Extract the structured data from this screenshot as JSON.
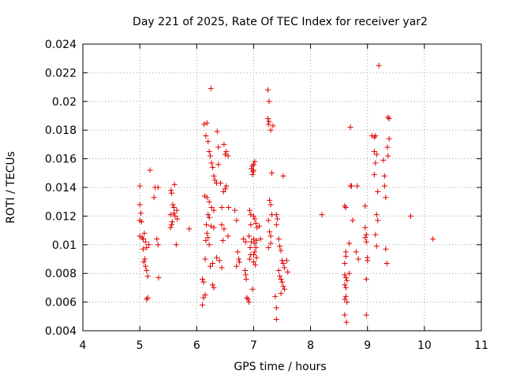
{
  "chart_data": {
    "type": "scatter",
    "title": "Day 221 of 2025, Rate Of TEC Index for receiver yar2",
    "xlabel": "GPS time / hours",
    "ylabel": "ROTI / TECUs",
    "xlim": [
      4,
      11
    ],
    "ylim": [
      0.004,
      0.024
    ],
    "xticks": [
      4,
      5,
      6,
      7,
      8,
      9,
      10,
      11
    ],
    "yticks": [
      0.004,
      0.006,
      0.008,
      0.01,
      0.012,
      0.014,
      0.016,
      0.018,
      0.02,
      0.022,
      0.024
    ],
    "xtick_labels": [
      "4",
      "5",
      "6",
      "7",
      "8",
      "9",
      "10",
      "11"
    ],
    "ytick_labels": [
      "0.004",
      "0.006",
      "0.008",
      "0.01",
      "0.012",
      "0.014",
      "0.016",
      "0.018",
      "0.02",
      "0.022",
      "0.024"
    ],
    "grid": true,
    "marker": "+",
    "marker_color": "#e00000",
    "series": [
      {
        "name": "yar2",
        "points": [
          [
            5.0,
            0.0141
          ],
          [
            5.0,
            0.0128
          ],
          [
            5.02,
            0.0122
          ],
          [
            5.0,
            0.0117
          ],
          [
            5.03,
            0.0116
          ],
          [
            5.0,
            0.0106
          ],
          [
            5.04,
            0.0105
          ],
          [
            5.06,
            0.0104
          ],
          [
            5.08,
            0.0108
          ],
          [
            5.1,
            0.0102
          ],
          [
            5.06,
            0.0097
          ],
          [
            5.09,
            0.009
          ],
          [
            5.07,
            0.0088
          ],
          [
            5.1,
            0.0085
          ],
          [
            5.12,
            0.0082
          ],
          [
            5.14,
            0.0078
          ],
          [
            5.12,
            0.0098
          ],
          [
            5.16,
            0.01
          ],
          [
            5.12,
            0.0062
          ],
          [
            5.14,
            0.0063
          ],
          [
            5.18,
            0.0152
          ],
          [
            5.27,
            0.014
          ],
          [
            5.32,
            0.014
          ],
          [
            5.25,
            0.0133
          ],
          [
            5.3,
            0.0104
          ],
          [
            5.32,
            0.01
          ],
          [
            5.33,
            0.0077
          ],
          [
            5.55,
            0.0138
          ],
          [
            5.56,
            0.0136
          ],
          [
            5.58,
            0.0128
          ],
          [
            5.6,
            0.0126
          ],
          [
            5.6,
            0.0122
          ],
          [
            5.62,
            0.012
          ],
          [
            5.57,
            0.0116
          ],
          [
            5.56,
            0.0114
          ],
          [
            5.54,
            0.0112
          ],
          [
            5.65,
            0.0124
          ],
          [
            5.66,
            0.0118
          ],
          [
            5.64,
            0.01
          ],
          [
            5.61,
            0.0142
          ],
          [
            5.54,
            0.0121
          ],
          [
            5.87,
            0.0111
          ],
          [
            6.13,
            0.0184
          ],
          [
            6.18,
            0.0185
          ],
          [
            6.16,
            0.0176
          ],
          [
            6.2,
            0.0172
          ],
          [
            6.22,
            0.0165
          ],
          [
            6.24,
            0.0162
          ],
          [
            6.26,
            0.0157
          ],
          [
            6.28,
            0.0154
          ],
          [
            6.3,
            0.0148
          ],
          [
            6.32,
            0.0145
          ],
          [
            6.35,
            0.0143
          ],
          [
            6.38,
            0.0168
          ],
          [
            6.36,
            0.0179
          ],
          [
            6.14,
            0.0134
          ],
          [
            6.18,
            0.0133
          ],
          [
            6.22,
            0.013
          ],
          [
            6.26,
            0.0126
          ],
          [
            6.3,
            0.0124
          ],
          [
            6.2,
            0.0121
          ],
          [
            6.22,
            0.0119
          ],
          [
            6.17,
            0.0114
          ],
          [
            6.25,
            0.0113
          ],
          [
            6.3,
            0.0112
          ],
          [
            6.18,
            0.0108
          ],
          [
            6.2,
            0.0105
          ],
          [
            6.16,
            0.0103
          ],
          [
            6.22,
            0.01
          ],
          [
            6.15,
            0.009
          ],
          [
            6.24,
            0.0085
          ],
          [
            6.28,
            0.0087
          ],
          [
            6.35,
            0.0091
          ],
          [
            6.1,
            0.0076
          ],
          [
            6.12,
            0.0074
          ],
          [
            6.28,
            0.0072
          ],
          [
            6.3,
            0.007
          ],
          [
            6.15,
            0.0065
          ],
          [
            6.12,
            0.0063
          ],
          [
            6.1,
            0.0058
          ],
          [
            6.25,
            0.0209
          ],
          [
            6.38,
            0.0156
          ],
          [
            6.42,
            0.0143
          ],
          [
            6.44,
            0.0126
          ],
          [
            6.47,
            0.0137
          ],
          [
            6.5,
            0.0139
          ],
          [
            6.52,
            0.0141
          ],
          [
            6.5,
            0.0163
          ],
          [
            6.52,
            0.0165
          ],
          [
            6.48,
            0.017
          ],
          [
            6.55,
            0.0162
          ],
          [
            6.56,
            0.0126
          ],
          [
            6.44,
            0.0114
          ],
          [
            6.48,
            0.0111
          ],
          [
            6.46,
            0.0103
          ],
          [
            6.4,
            0.0089
          ],
          [
            6.44,
            0.0084
          ],
          [
            6.55,
            0.0106
          ],
          [
            6.67,
            0.0124
          ],
          [
            6.7,
            0.0117
          ],
          [
            6.72,
            0.0095
          ],
          [
            6.74,
            0.009
          ],
          [
            6.75,
            0.0088
          ],
          [
            6.7,
            0.0085
          ],
          [
            6.82,
            0.0104
          ],
          [
            6.86,
            0.0102
          ],
          [
            6.85,
            0.0082
          ],
          [
            6.86,
            0.0079
          ],
          [
            6.87,
            0.0076
          ],
          [
            6.88,
            0.0063
          ],
          [
            6.9,
            0.0062
          ],
          [
            6.92,
            0.006
          ],
          [
            6.93,
            0.0124
          ],
          [
            6.95,
            0.0121
          ],
          [
            6.95,
            0.0114
          ],
          [
            6.92,
            0.0106
          ],
          [
            6.96,
            0.0102
          ],
          [
            6.94,
            0.0098
          ],
          [
            6.95,
            0.0093
          ],
          [
            6.93,
            0.009
          ],
          [
            6.98,
            0.0155
          ],
          [
            6.96,
            0.0153
          ],
          [
            6.99,
            0.0151
          ],
          [
            7.0,
            0.0152
          ],
          [
            7.02,
            0.0158
          ],
          [
            7.0,
            0.0156
          ],
          [
            6.98,
            0.0149
          ],
          [
            7.0,
            0.012
          ],
          [
            7.02,
            0.0118
          ],
          [
            7.04,
            0.0115
          ],
          [
            7.06,
            0.0112
          ],
          [
            7.0,
            0.0104
          ],
          [
            7.02,
            0.0101
          ],
          [
            7.04,
            0.0098
          ],
          [
            7.02,
            0.0095
          ],
          [
            7.0,
            0.0093
          ],
          [
            7.0,
            0.0088
          ],
          [
            7.03,
            0.0086
          ],
          [
            7.05,
            0.0091
          ],
          [
            7.05,
            0.0103
          ],
          [
            7.1,
            0.0113
          ],
          [
            7.12,
            0.0104
          ],
          [
            6.98,
            0.0069
          ],
          [
            7.25,
            0.0208
          ],
          [
            7.27,
            0.02
          ],
          [
            7.25,
            0.0188
          ],
          [
            7.27,
            0.0186
          ],
          [
            7.26,
            0.0184
          ],
          [
            7.3,
            0.018
          ],
          [
            7.34,
            0.0183
          ],
          [
            7.32,
            0.015
          ],
          [
            7.28,
            0.0131
          ],
          [
            7.3,
            0.0128
          ],
          [
            7.32,
            0.0121
          ],
          [
            7.26,
            0.0117
          ],
          [
            7.28,
            0.0109
          ],
          [
            7.3,
            0.0106
          ],
          [
            7.3,
            0.0101
          ],
          [
            7.26,
            0.0098
          ],
          [
            7.38,
            0.0064
          ],
          [
            7.4,
            0.0056
          ],
          [
            7.4,
            0.0048
          ],
          [
            7.4,
            0.0121
          ],
          [
            7.42,
            0.0118
          ],
          [
            7.4,
            0.0114
          ],
          [
            7.44,
            0.0104
          ],
          [
            7.46,
            0.0099
          ],
          [
            7.48,
            0.0096
          ],
          [
            7.5,
            0.0089
          ],
          [
            7.52,
            0.0087
          ],
          [
            7.54,
            0.0084
          ],
          [
            7.44,
            0.0082
          ],
          [
            7.46,
            0.0078
          ],
          [
            7.48,
            0.0076
          ],
          [
            7.5,
            0.0074
          ],
          [
            7.52,
            0.0071
          ],
          [
            7.54,
            0.0069
          ],
          [
            7.48,
            0.0066
          ],
          [
            7.52,
            0.0148
          ],
          [
            7.58,
            0.0089
          ],
          [
            7.6,
            0.0081
          ],
          [
            8.2,
            0.0121
          ],
          [
            8.6,
            0.0127
          ],
          [
            8.62,
            0.0126
          ],
          [
            8.62,
            0.0095
          ],
          [
            8.62,
            0.0092
          ],
          [
            8.6,
            0.0087
          ],
          [
            8.6,
            0.0079
          ],
          [
            8.62,
            0.0077
          ],
          [
            8.64,
            0.0075
          ],
          [
            8.6,
            0.0072
          ],
          [
            8.62,
            0.007
          ],
          [
            8.62,
            0.0064
          ],
          [
            8.6,
            0.0062
          ],
          [
            8.64,
            0.006
          ],
          [
            8.6,
            0.0051
          ],
          [
            8.63,
            0.0046
          ],
          [
            8.68,
            0.0101
          ],
          [
            8.7,
            0.0141
          ],
          [
            8.72,
            0.0141
          ],
          [
            8.7,
            0.0182
          ],
          [
            8.68,
            0.008
          ],
          [
            8.74,
            0.0117
          ],
          [
            8.82,
            0.0141
          ],
          [
            8.8,
            0.0095
          ],
          [
            8.84,
            0.009
          ],
          [
            8.96,
            0.0127
          ],
          [
            8.96,
            0.0112
          ],
          [
            8.98,
            0.0107
          ],
          [
            8.96,
            0.0105
          ],
          [
            8.98,
            0.0102
          ],
          [
            9.0,
            0.0091
          ],
          [
            9.0,
            0.0089
          ],
          [
            8.98,
            0.0076
          ],
          [
            8.98,
            0.0051
          ],
          [
            9.08,
            0.0176
          ],
          [
            9.12,
            0.0175
          ],
          [
            9.14,
            0.0176
          ],
          [
            9.12,
            0.0165
          ],
          [
            9.16,
            0.0163
          ],
          [
            9.14,
            0.0157
          ],
          [
            9.12,
            0.0149
          ],
          [
            9.18,
            0.0137
          ],
          [
            9.16,
            0.0121
          ],
          [
            9.18,
            0.0117
          ],
          [
            9.14,
            0.0107
          ],
          [
            9.16,
            0.0099
          ],
          [
            9.2,
            0.0225
          ],
          [
            9.28,
            0.0159
          ],
          [
            9.3,
            0.0148
          ],
          [
            9.3,
            0.0141
          ],
          [
            9.32,
            0.0133
          ],
          [
            9.35,
            0.0168
          ],
          [
            9.38,
            0.0174
          ],
          [
            9.36,
            0.0189
          ],
          [
            9.38,
            0.0188
          ],
          [
            9.36,
            0.0162
          ],
          [
            9.34,
            0.0087
          ],
          [
            9.32,
            0.0097
          ],
          [
            9.76,
            0.012
          ],
          [
            10.15,
            0.0104
          ]
        ]
      }
    ]
  }
}
